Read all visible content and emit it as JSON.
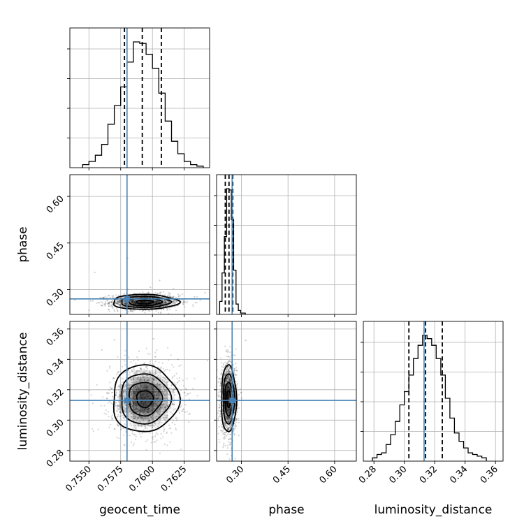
{
  "chart_data": {
    "type": "corner",
    "parameters": [
      "geocent_time",
      "phase",
      "luminosity_distance"
    ],
    "truth": {
      "geocent_time": 0.758,
      "phase": 0.27,
      "luminosity_distance": 0.313
    },
    "truth_color": "#4682b4",
    "hist_color": "#000000",
    "grid": true,
    "quantile_lines_note_values": {
      "geocent_time": [
        0.7578,
        0.7592,
        0.7607
      ],
      "phase": [
        0.248,
        0.26,
        0.272
      ],
      "luminosity_distance": [
        0.303,
        0.314,
        0.325
      ]
    },
    "axes": {
      "geocent_time": {
        "lim": [
          0.7535,
          0.7645
        ],
        "ticks": [
          0.755,
          0.7575,
          0.76,
          0.7625
        ],
        "tick_labels": [
          "0.7550",
          "0.7575",
          "0.7600",
          "0.7625"
        ],
        "label": "geocent_time"
      },
      "phase": {
        "lim": [
          0.22,
          0.67
        ],
        "ticks": [
          0.3,
          0.45,
          0.6
        ],
        "tick_labels": [
          "0.30",
          "0.45",
          "0.60"
        ],
        "label": "phase"
      },
      "luminosity_distance": {
        "lim": [
          0.273,
          0.365
        ],
        "ticks": [
          0.28,
          0.3,
          0.32,
          0.34,
          0.36
        ],
        "tick_labels": [
          "0.28",
          "0.30",
          "0.32",
          "0.34",
          "0.36"
        ],
        "label": "luminosity_distance"
      }
    },
    "hist_geocent_time": {
      "edges": [
        0.7545,
        0.755,
        0.7555,
        0.756,
        0.7565,
        0.757,
        0.7575,
        0.758,
        0.7585,
        0.759,
        0.7595,
        0.76,
        0.7605,
        0.761,
        0.7615,
        0.762,
        0.7625,
        0.763,
        0.7635,
        0.764
      ],
      "counts": [
        2,
        4,
        8,
        15,
        28,
        40,
        52,
        68,
        81,
        80,
        73,
        64,
        48,
        30,
        17,
        9,
        4,
        2,
        1
      ]
    },
    "hist_phase": {
      "edges": [
        0.23,
        0.2375,
        0.245,
        0.2525,
        0.26,
        0.2675,
        0.275,
        0.2825,
        0.29,
        0.2975,
        0.305,
        0.3125
      ],
      "counts": [
        10,
        32,
        60,
        97,
        96,
        73,
        34,
        8,
        3,
        1,
        1
      ]
    },
    "hist_luminosity_distance": {
      "edges": [
        0.279,
        0.282,
        0.285,
        0.288,
        0.291,
        0.294,
        0.297,
        0.3,
        0.303,
        0.306,
        0.309,
        0.312,
        0.315,
        0.318,
        0.321,
        0.324,
        0.327,
        0.33,
        0.333,
        0.336,
        0.339,
        0.342,
        0.345,
        0.348,
        0.351,
        0.354
      ],
      "counts": [
        2,
        4,
        5,
        10,
        16,
        24,
        34,
        42,
        52,
        62,
        70,
        76,
        74,
        70,
        62,
        52,
        38,
        26,
        17,
        12,
        8,
        5,
        4,
        3,
        2
      ]
    },
    "scatter_geocent_time_phase": {
      "center": [
        0.7594,
        0.26
      ],
      "sigma": [
        0.0013,
        0.012
      ]
    },
    "scatter_geocent_time_luminosity_distance": {
      "center": [
        0.7594,
        0.314
      ],
      "sigma": [
        0.0013,
        0.011
      ]
    },
    "scatter_phase_luminosity_distance": {
      "center": [
        0.259,
        0.314
      ],
      "sigma": [
        0.012,
        0.011
      ]
    }
  }
}
